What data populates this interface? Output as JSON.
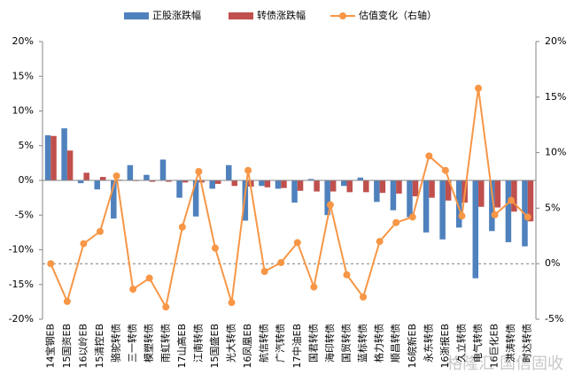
{
  "chart_data": {
    "type": "bar_line",
    "categories": [
      "14宝钢EB",
      "15国资EB",
      "16以岭EB",
      "15清控EB",
      "骆驼转债",
      "三一转债",
      "模塑转债",
      "雨虹转债",
      "17山高EB",
      "江南转债",
      "15国盛EB",
      "光大转债",
      "16凤凰EB",
      "航信转债",
      "广汽转债",
      "17中油EB",
      "国君转债",
      "海印转债",
      "国贸转债",
      "蓝标转债",
      "格力转债",
      "顺昌转债",
      "16皖新EB",
      "永东转债",
      "16浙报EB",
      "久立转债",
      "电气转债",
      "16巨化EB",
      "洪涛转债",
      "时达转债"
    ],
    "series": [
      {
        "name": "正股涨跌幅",
        "kind": "bar",
        "color": "#4f81bd",
        "values": [
          6.5,
          7.5,
          -0.4,
          -1.3,
          -5.5,
          2.2,
          0.8,
          3.0,
          -2.5,
          -5.2,
          -1.2,
          2.2,
          -5.8,
          -0.8,
          -1.2,
          -3.2,
          0.2,
          -5.0,
          -0.8,
          0.4,
          -3.1,
          -4.3,
          -5.3,
          -7.5,
          -8.5,
          -6.8,
          -14.1,
          -7.3,
          -8.9,
          -9.5
        ]
      },
      {
        "name": "转债涨跌幅",
        "kind": "bar",
        "color": "#c0504d",
        "values": [
          6.4,
          4.3,
          1.1,
          0.5,
          0.1,
          -0.1,
          -0.2,
          -0.2,
          -0.3,
          -0.3,
          -0.5,
          -0.8,
          -0.9,
          -1.0,
          -1.1,
          -1.5,
          -1.6,
          -1.6,
          -1.7,
          -1.7,
          -1.8,
          -1.9,
          -2.3,
          -2.5,
          -2.9,
          -3.2,
          -3.8,
          -3.9,
          -4.5,
          -5.9
        ]
      },
      {
        "name": "估值变化（右轴）",
        "kind": "line",
        "axis": "y2",
        "color": "#f79646",
        "values": [
          0,
          -3.4,
          1.8,
          2.9,
          7.9,
          -2.3,
          -1.3,
          -3.9,
          3.3,
          8.3,
          1.4,
          -3.5,
          8.4,
          -0.7,
          0.1,
          1.9,
          -2.1,
          5.3,
          -1.0,
          -3.0,
          2.0,
          3.7,
          4.2,
          9.7,
          8.4,
          4.3,
          15.8,
          4.4,
          5.7,
          4.2
        ]
      }
    ],
    "ylim": [
      -20,
      20
    ],
    "yticks": [
      {
        "value": -20,
        "label": "-20%"
      },
      {
        "value": -15,
        "label": "-15%"
      },
      {
        "value": -10,
        "label": "-10%"
      },
      {
        "value": -5,
        "label": "-5%"
      },
      {
        "value": 0,
        "label": "0%"
      },
      {
        "value": 5,
        "label": "5%"
      },
      {
        "value": 10,
        "label": "10%"
      },
      {
        "value": 15,
        "label": "15%"
      },
      {
        "value": 20,
        "label": "20%"
      }
    ],
    "y2lim": [
      -5,
      20
    ],
    "y2ticks": [
      {
        "value": -5,
        "label": "-5%"
      },
      {
        "value": 0,
        "label": "0%"
      },
      {
        "value": 5,
        "label": "5%"
      },
      {
        "value": 10,
        "label": "10%"
      },
      {
        "value": 15,
        "label": "15%"
      },
      {
        "value": 20,
        "label": "20%"
      }
    ],
    "legend": "top",
    "watermark": "格隆汇 国信固收"
  }
}
